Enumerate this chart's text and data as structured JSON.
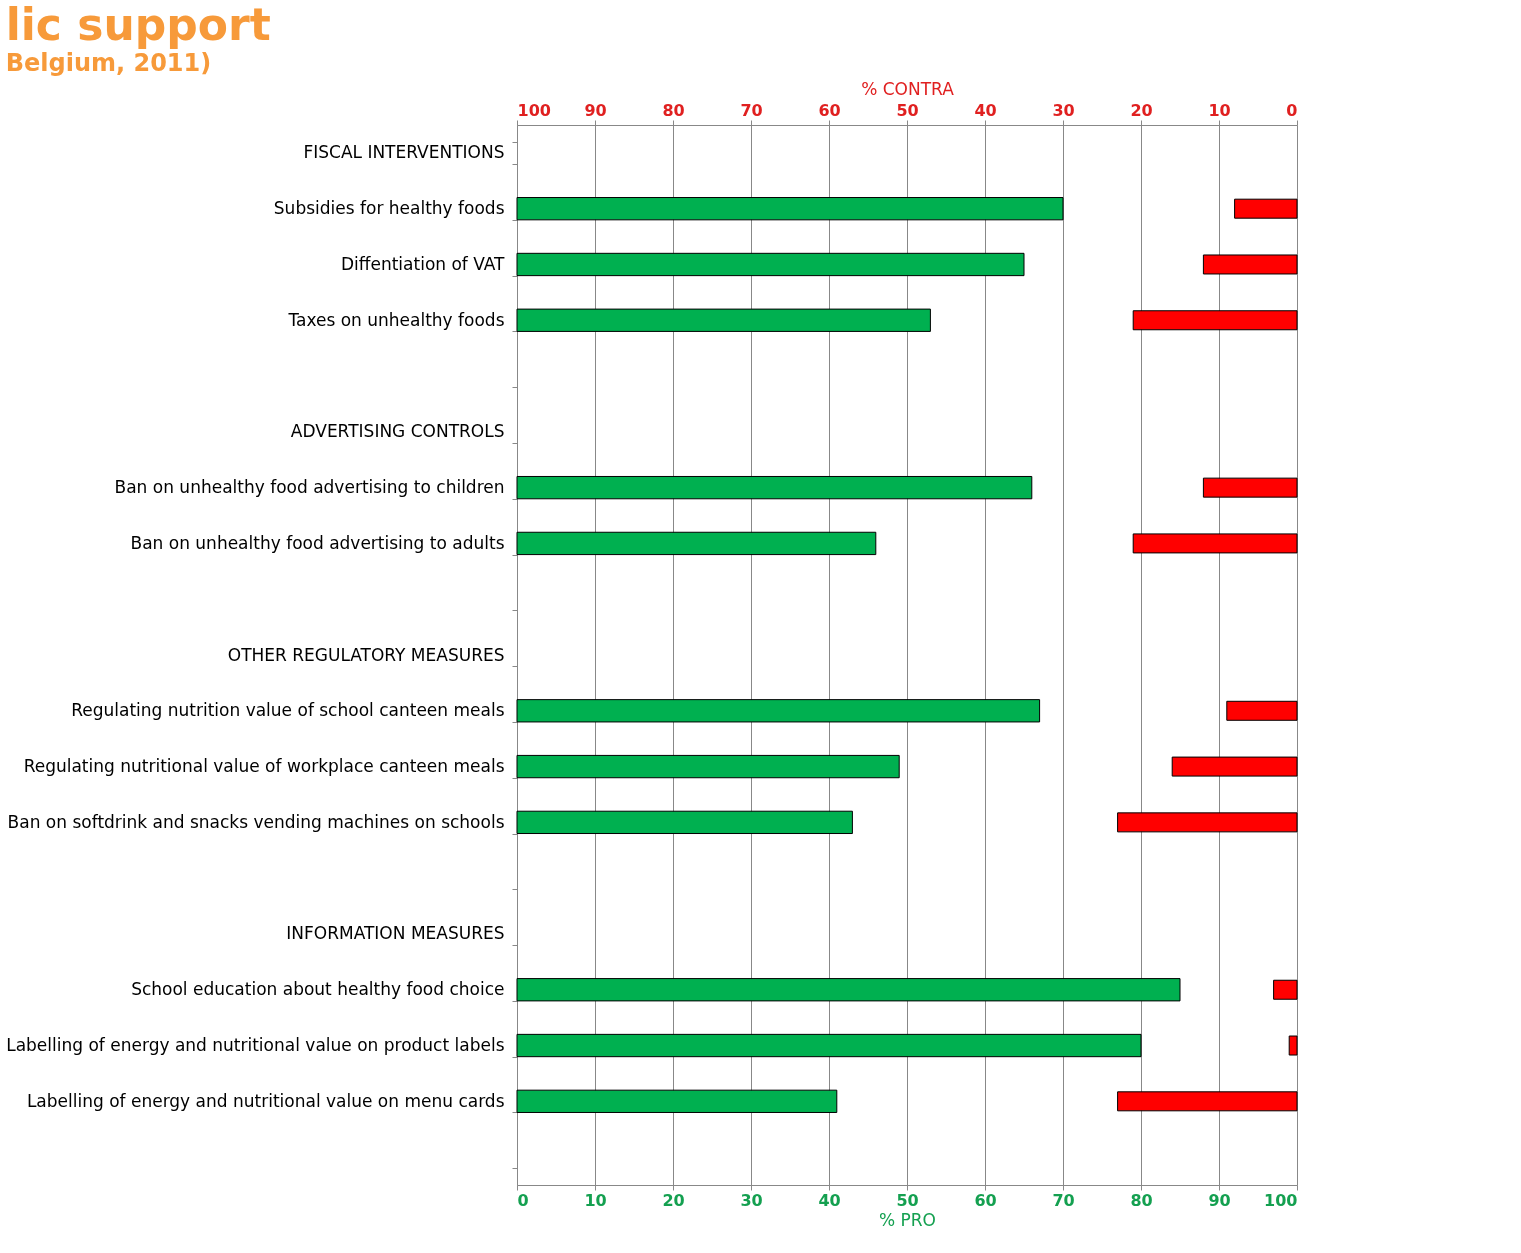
{
  "chart_data": {
    "type": "bar",
    "orientation": "horizontal",
    "title": "lic support",
    "subtitle": "Belgium, 2011)",
    "categories": [
      "FISCAL INTERVENTIONS",
      "Subsidies for healthy foods",
      "Diffentiation of VAT",
      "Taxes on unhealthy foods",
      null,
      "ADVERTISING CONTROLS",
      "Ban on unhealthy food advertising to children",
      "Ban on unhealthy food advertising to adults",
      null,
      "OTHER REGULATORY MEASURES",
      "Regulating nutrition value of school canteen meals",
      "Regulating nutritional value of workplace canteen meals",
      "Ban on softdrink and snacks vending machines on schools",
      null,
      "INFORMATION MEASURES",
      "School education about healthy food choice",
      "Labelling of energy and nutritional value on product labels",
      "Labelling of energy and nutritional value on menu cards",
      null
    ],
    "series": [
      {
        "color": "#00b050",
        "values": [
          null,
          70,
          65,
          53,
          null,
          null,
          66,
          46,
          null,
          null,
          67,
          49,
          43,
          null,
          null,
          85,
          80,
          41,
          null
        ]
      },
      {
        "color": "#ff0000",
        "axis": "x2",
        "values": [
          null,
          8,
          12,
          21,
          null,
          null,
          12,
          21,
          null,
          null,
          9,
          16,
          23,
          null,
          null,
          3,
          1,
          23,
          null
        ]
      }
    ],
    "xlabel": "% PRO",
    "x2label": "% CONTRA",
    "xlim": [
      0,
      100
    ],
    "xticks": [
      0,
      10,
      20,
      30,
      40,
      50,
      60,
      70,
      80,
      90,
      100
    ],
    "x2lim": [
      100,
      0
    ],
    "x2ticks": [
      100,
      90,
      80,
      70,
      60,
      50,
      40,
      30,
      20,
      10,
      0
    ],
    "grid": "x"
  }
}
